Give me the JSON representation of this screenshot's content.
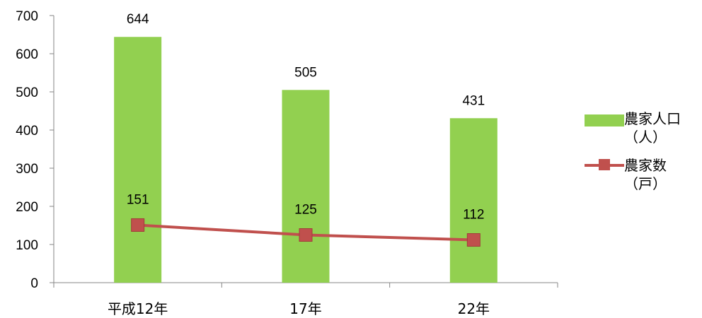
{
  "chart_data": {
    "type": "bar",
    "categories": [
      "平成12年",
      "17年",
      "22年"
    ],
    "ylim": [
      0,
      700
    ],
    "yticks": [
      0,
      100,
      200,
      300,
      400,
      500,
      600,
      700
    ],
    "series": [
      {
        "name": "農家人口\n（人）",
        "kind": "bar",
        "color": "#92d050",
        "values": [
          644,
          505,
          431
        ]
      },
      {
        "name": "農家数\n（戸）",
        "kind": "line",
        "color": "#c0504d",
        "values": [
          151,
          125,
          112
        ]
      }
    ],
    "legend_position": "right",
    "grid": false
  }
}
